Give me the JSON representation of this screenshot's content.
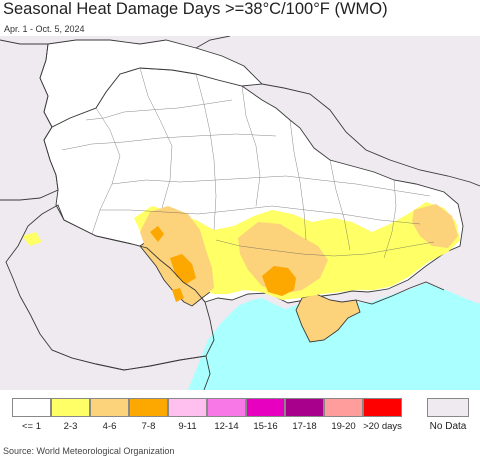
{
  "title": "Seasonal Heat Damage Days >=38°C/100°F (WMO)",
  "subtitle": "Apr. 1 - Oct. 5, 2024",
  "source": "Source: World Meteorological Organization",
  "legend": [
    {
      "label": "<= 1",
      "color": "#ffffff"
    },
    {
      "label": "2-3",
      "color": "#ffff66"
    },
    {
      "label": "4-6",
      "color": "#fcd27a"
    },
    {
      "label": "7-8",
      "color": "#fca800"
    },
    {
      "label": "9-11",
      "color": "#ffc0f0"
    },
    {
      "label": "12-14",
      "color": "#f878e8"
    },
    {
      "label": "15-16",
      "color": "#e800c0"
    },
    {
      "label": "17-18",
      "color": "#a8008c"
    },
    {
      "label": "19-20",
      "color": "#ff9c9c"
    },
    {
      "label": ">20 days",
      "color": "#ff0000"
    }
  ],
  "no_data": {
    "label": "No Data",
    "color": "#efeaf0"
  },
  "map_colors": {
    "sea": "#aaffff",
    "land_no_data": "#efeaf0",
    "land_low": "#ffffff",
    "borders": "#3a3a3a"
  }
}
